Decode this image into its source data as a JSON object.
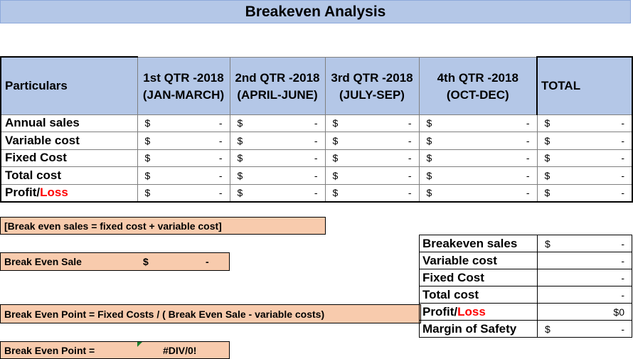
{
  "title": "Breakeven Analysis",
  "main_table": {
    "headers": {
      "particulars": "Particulars",
      "q1_line1": "1st QTR -2018",
      "q1_line2": "(JAN-MARCH)",
      "q2_line1": "2nd QTR -2018",
      "q2_line2": "(APRIL-JUNE)",
      "q3_line1": "3rd QTR -2018",
      "q3_line2": "(JULY-SEP)",
      "q4_line1": "4th QTR -2018",
      "q4_line2": "(OCT-DEC)",
      "total": "TOTAL"
    },
    "rows": [
      {
        "label": "Annual sales"
      },
      {
        "label": "Variable cost"
      },
      {
        "label": "Fixed Cost"
      },
      {
        "label": "Total cost"
      },
      {
        "label_part1": "Profit/",
        "label_part2": "Loss"
      }
    ],
    "currency": "$",
    "empty_value": "-"
  },
  "notes": {
    "formula1": "[Break even sales = fixed cost + variable cost]",
    "break_even_sale_label": "Break Even Sale",
    "break_even_sale_currency": "$",
    "break_even_sale_value": "-",
    "formula2": "Break Even Point = Fixed Costs / ( Break Even Sale - variable costs)",
    "break_even_point_label": "Break Even Point =",
    "break_even_point_value": "#DIV/0!"
  },
  "summary": {
    "rows": [
      {
        "label": "Breakeven sales",
        "currency": "$",
        "value": "-"
      },
      {
        "label": "Variable cost",
        "currency": "",
        "value": "-"
      },
      {
        "label": "Fixed Cost",
        "currency": "",
        "value": "-"
      },
      {
        "label": "Total cost",
        "currency": "",
        "value": "-"
      },
      {
        "label_part1": "Profit/",
        "label_part2": "Loss",
        "currency": "",
        "value": "$0"
      },
      {
        "label": "Margin of Safety",
        "currency": "$",
        "value": "-"
      }
    ]
  },
  "colors": {
    "header_blue": "#b4c7e7",
    "note_orange": "#f8cbad",
    "loss_red": "#ff0000"
  }
}
